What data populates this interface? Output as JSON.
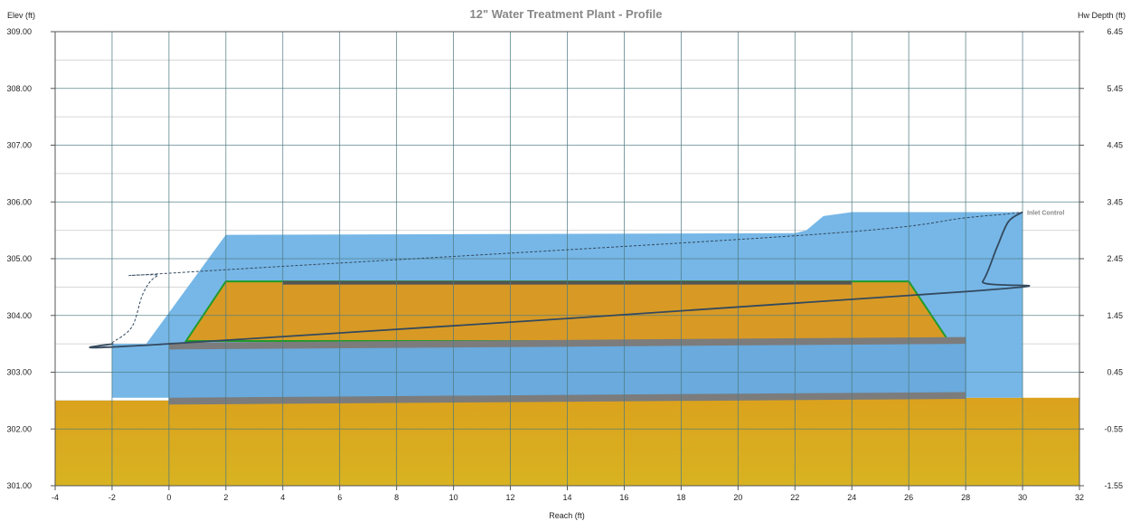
{
  "chart_data": {
    "type": "area",
    "title": "12\" Water Treatment Plant - Profile",
    "xlabel": "Reach (ft)",
    "ylabel_left": "Elev (ft)",
    "ylabel_right": "Hw Depth (ft)",
    "xlim": [
      -4,
      32
    ],
    "ylim": [
      301.0,
      309.0
    ],
    "ylim_right": [
      -1.55,
      6.45
    ],
    "x_ticks": [
      -4,
      -2,
      0,
      2,
      4,
      6,
      8,
      10,
      12,
      14,
      16,
      18,
      20,
      22,
      24,
      26,
      28,
      30,
      32
    ],
    "y_ticks": [
      "301.00",
      "302.00",
      "303.00",
      "304.00",
      "305.00",
      "306.00",
      "307.00",
      "308.00",
      "309.00"
    ],
    "y_right_ticks": [
      "-1.55",
      "-0.55",
      "0.45",
      "1.45",
      "2.45",
      "3.45",
      "4.45",
      "5.45",
      "6.45"
    ],
    "grid": true,
    "colors": {
      "water": "#6fb3e6",
      "ground": "#dba21d",
      "embankment": "#d89a25",
      "culvert": "#6aaadc",
      "pipe_wall": "#7c7c7c",
      "hgl": "#34495e",
      "grid_major": "#4e7a82",
      "grid_minor": "#d6d6d6"
    },
    "series": [
      {
        "key": "ground",
        "points": [
          [
            -4,
            302.5
          ],
          [
            -2,
            302.5
          ],
          [
            0,
            302.5
          ],
          [
            28,
            302.55
          ],
          [
            32,
            302.55
          ]
        ]
      },
      {
        "key": "water_area",
        "points": [
          [
            -2,
            302.55
          ],
          [
            -2,
            303.5
          ],
          [
            -0.8,
            303.5
          ],
          [
            2,
            305.42
          ],
          [
            22,
            305.45
          ],
          [
            22.4,
            305.5
          ],
          [
            23,
            305.75
          ],
          [
            24,
            305.82
          ],
          [
            30,
            305.82
          ],
          [
            30,
            302.55
          ]
        ]
      },
      {
        "key": "embankment",
        "points": [
          [
            0.6,
            303.55
          ],
          [
            2,
            304.6
          ],
          [
            26,
            304.6
          ],
          [
            27.4,
            303.55
          ]
        ]
      },
      {
        "key": "road_surface",
        "x": [
          4,
          24
        ],
        "elev": 304.6
      },
      {
        "key": "culvert",
        "inlet_x": 28,
        "outlet_x": 0,
        "inlet_invert": 302.55,
        "outlet_invert": 302.45,
        "inlet_crown": 303.6,
        "outlet_crown": 303.5
      },
      {
        "key": "hydraulic_grade_line",
        "points": [
          [
            -2,
            303.5
          ],
          [
            0,
            303.5
          ],
          [
            28,
            304.42
          ],
          [
            28.6,
            304.6
          ],
          [
            29.1,
            305.2
          ],
          [
            29.5,
            305.65
          ],
          [
            30,
            305.82
          ]
        ]
      },
      {
        "key": "energy_grade_line",
        "points": [
          [
            -2,
            303.52
          ],
          [
            -1.3,
            303.8
          ],
          [
            -0.9,
            304.4
          ],
          [
            -0.4,
            304.7
          ],
          [
            0.5,
            304.76
          ],
          [
            22.5,
            305.42
          ],
          [
            28,
            305.72
          ],
          [
            29.3,
            305.78
          ],
          [
            30,
            305.82
          ]
        ]
      }
    ],
    "annotations": [
      {
        "text": "Inlet Control",
        "x": 30,
        "y": 305.82
      }
    ]
  }
}
